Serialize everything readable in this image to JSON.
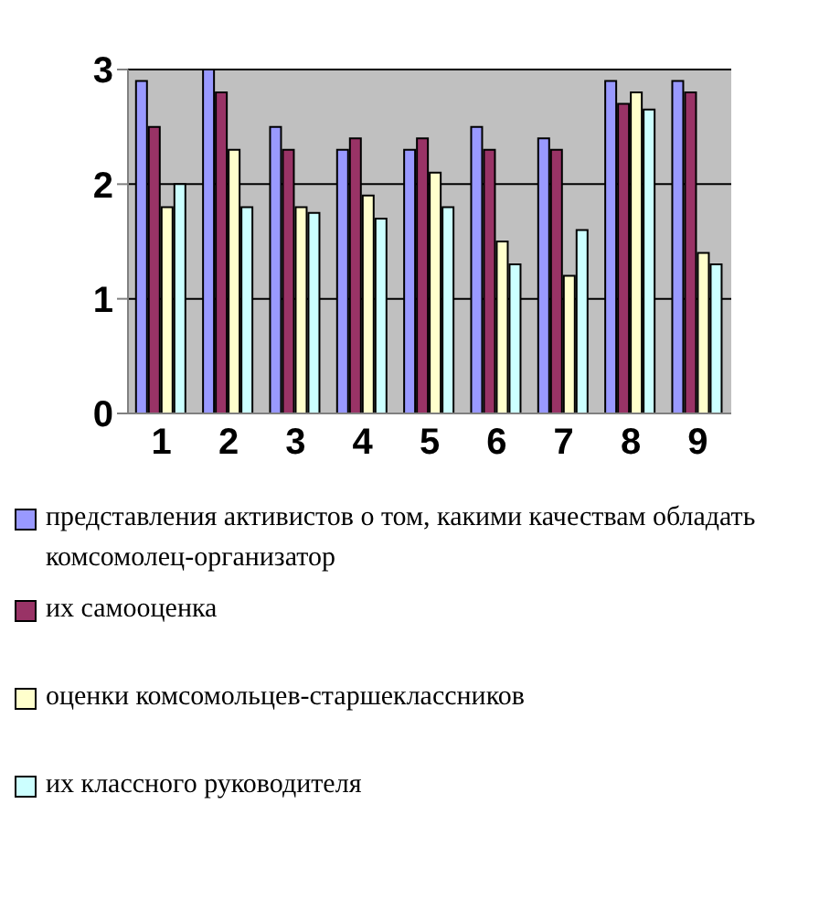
{
  "chart_data": {
    "type": "bar",
    "categories": [
      "1",
      "2",
      "3",
      "4",
      "5",
      "6",
      "7",
      "8",
      "9"
    ],
    "series": [
      {
        "name": "представления активистов о том, какими качествам обладать комсомолец-организатор",
        "color": "#9999ff",
        "values": [
          2.9,
          3.0,
          2.5,
          2.3,
          2.3,
          2.5,
          2.4,
          2.9,
          2.9
        ]
      },
      {
        "name": "их самооценка",
        "color": "#993366",
        "values": [
          2.5,
          2.8,
          2.3,
          2.4,
          2.4,
          2.3,
          2.3,
          2.7,
          2.8
        ]
      },
      {
        "name": "оценки комсомольцев-старшеклассников",
        "color": "#ffffcc",
        "values": [
          1.8,
          2.3,
          1.8,
          1.9,
          2.1,
          1.5,
          1.2,
          2.8,
          1.4
        ]
      },
      {
        "name": "их классного руководителя",
        "color": "#ccffff",
        "values": [
          2.0,
          1.8,
          1.75,
          1.7,
          1.8,
          1.3,
          1.6,
          2.65,
          1.3
        ]
      }
    ],
    "ylim": [
      0,
      3
    ],
    "yticks": [
      0,
      1,
      2,
      3
    ],
    "grid": "y",
    "legend": "bottom"
  }
}
